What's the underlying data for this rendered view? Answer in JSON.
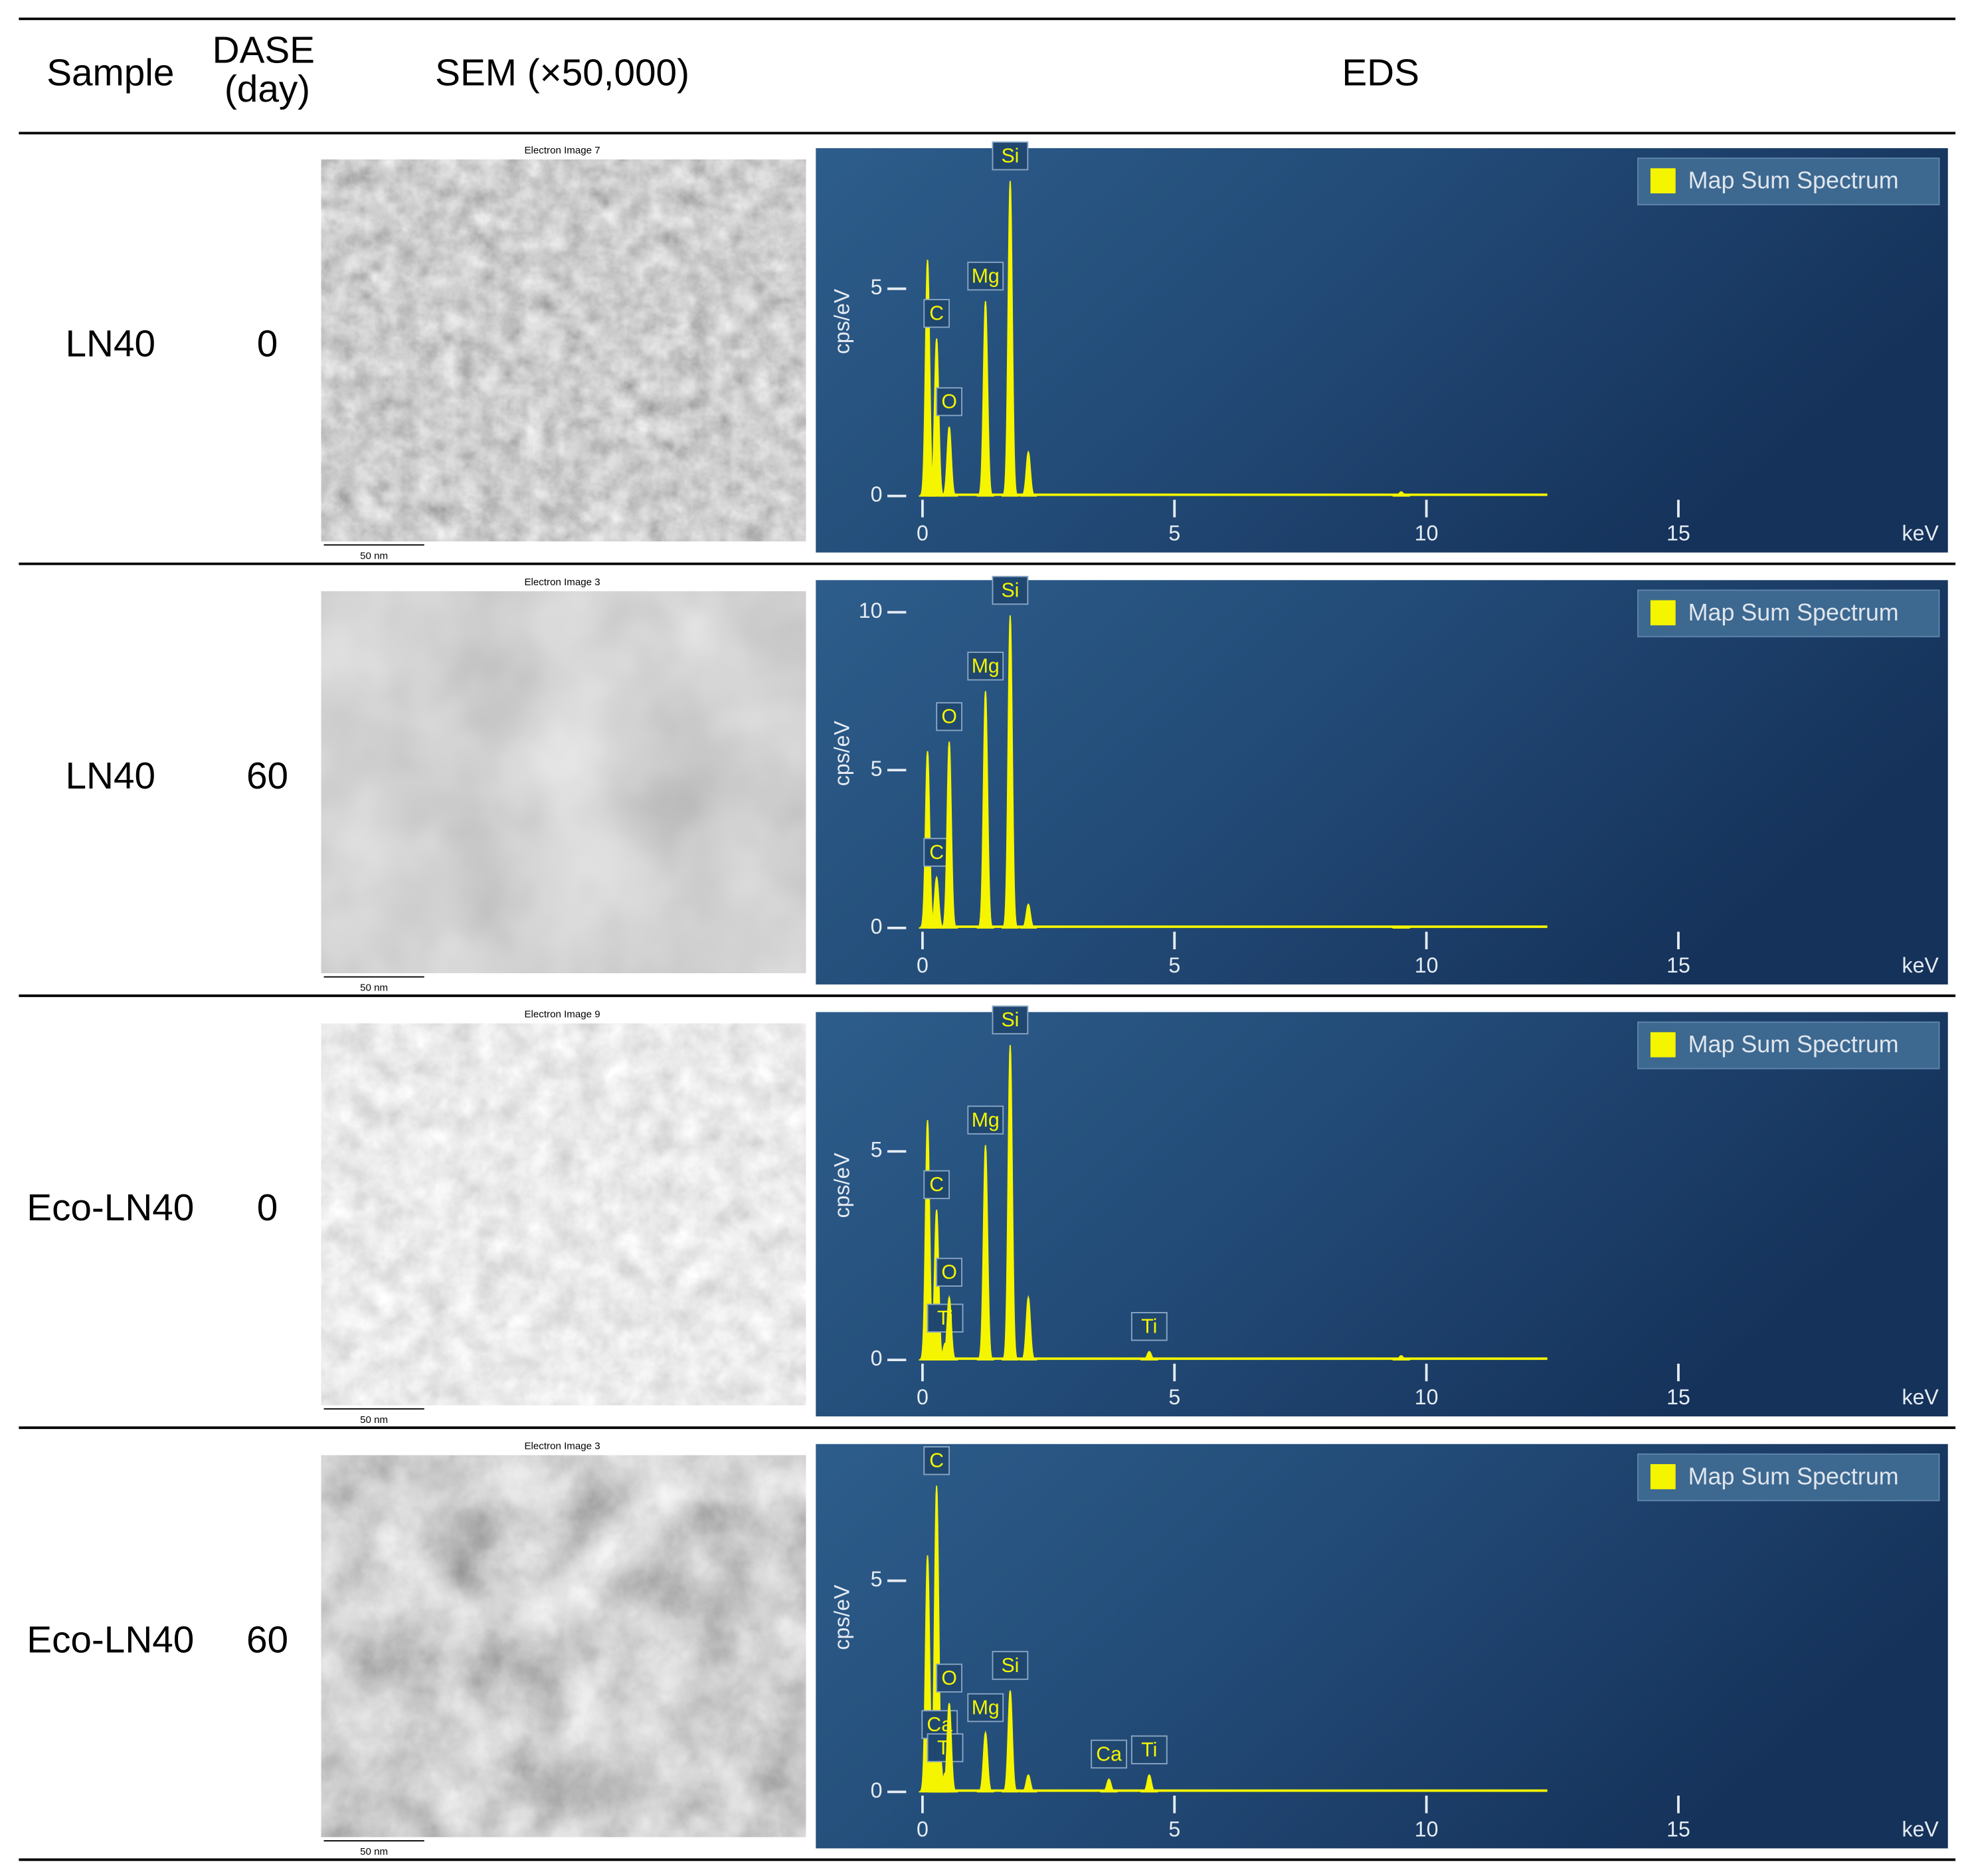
{
  "header": {
    "sample": "Sample",
    "dase": [
      "DASE",
      "(day)"
    ],
    "sem": "SEM (×50,000)",
    "eds": "EDS"
  },
  "rows": [
    {
      "sample": "LN40",
      "dase": 0,
      "sem": {
        "caption": "Electron Image 7",
        "scale": "50 nm"
      },
      "eds": {
        "type": "spectrum",
        "legend": "Map Sum Spectrum",
        "ylabel": "cps/eV",
        "xlabel": "keV",
        "color": "#f5f500",
        "xlim": [
          0,
          20
        ],
        "ylim": [
          0,
          8.15
        ],
        "xticks": [
          0,
          5,
          10,
          15
        ],
        "yticks": [
          0,
          5
        ],
        "peaks": [
          {
            "x": 0.1,
            "y": 5.7
          },
          {
            "x": 0.28,
            "y": 3.8,
            "label": "C"
          },
          {
            "x": 0.53,
            "y": 1.67,
            "label": "O"
          },
          {
            "x": 1.25,
            "y": 4.7,
            "label": "Mg"
          },
          {
            "x": 1.74,
            "y": 7.6,
            "label": "Si"
          },
          {
            "x": 2.1,
            "y": 1.06
          },
          {
            "x": 9.5,
            "y": 0.1
          }
        ]
      }
    },
    {
      "sample": "LN40",
      "dase": 60,
      "sem": {
        "caption": "Electron Image 3",
        "scale": "50 nm"
      },
      "eds": {
        "type": "spectrum",
        "legend": "Map Sum Spectrum",
        "ylabel": "cps/eV",
        "xlabel": "keV",
        "color": "#f5f500",
        "xlim": [
          0,
          20
        ],
        "ylim": [
          0,
          10.7
        ],
        "xticks": [
          0,
          5,
          10,
          15
        ],
        "yticks": [
          0,
          5,
          10
        ],
        "peaks": [
          {
            "x": 0.1,
            "y": 5.6
          },
          {
            "x": 0.28,
            "y": 1.6,
            "label": "C"
          },
          {
            "x": 0.53,
            "y": 5.9,
            "label": "O"
          },
          {
            "x": 1.25,
            "y": 7.5,
            "label": "Mg"
          },
          {
            "x": 1.74,
            "y": 9.9,
            "label": "Si"
          },
          {
            "x": 2.1,
            "y": 0.75
          },
          {
            "x": 9.5,
            "y": 0.05
          }
        ]
      }
    },
    {
      "sample": "Eco-LN40",
      "dase": 0,
      "sem": {
        "caption": "Electron Image 9",
        "scale": "50 nm"
      },
      "eds": {
        "type": "spectrum",
        "legend": "Map Sum Spectrum",
        "ylabel": "cps/eV",
        "xlabel": "keV",
        "color": "#f5f500",
        "xlim": [
          0,
          20
        ],
        "ylim": [
          0,
          8.1
        ],
        "xticks": [
          0,
          5,
          10,
          15
        ],
        "yticks": [
          0,
          5
        ],
        "peaks": [
          {
            "x": 0.1,
            "y": 5.75
          },
          {
            "x": 0.28,
            "y": 3.6,
            "label": "C"
          },
          {
            "x": 0.45,
            "y": 0.4,
            "label": "Ti"
          },
          {
            "x": 0.53,
            "y": 1.5,
            "label": "O"
          },
          {
            "x": 1.25,
            "y": 5.15,
            "label": "Mg"
          },
          {
            "x": 1.74,
            "y": 7.55,
            "label": "Si"
          },
          {
            "x": 2.1,
            "y": 1.5
          },
          {
            "x": 4.5,
            "y": 0.2,
            "label": "Ti"
          },
          {
            "x": 9.5,
            "y": 0.1
          }
        ]
      }
    },
    {
      "sample": "Eco-LN40",
      "dase": 60,
      "sem": {
        "caption": "Electron Image 3",
        "scale": "50 nm"
      },
      "eds": {
        "type": "spectrum",
        "legend": "Map Sum Spectrum",
        "ylabel": "cps/eV",
        "xlabel": "keV",
        "color": "#f5f500",
        "xlim": [
          0,
          20
        ],
        "ylim": [
          0,
          8
        ],
        "xticks": [
          0,
          5,
          10,
          15
        ],
        "yticks": [
          0,
          5
        ],
        "peaks": [
          {
            "x": 0.1,
            "y": 5.6
          },
          {
            "x": 0.28,
            "y": 7.25,
            "label": "C"
          },
          {
            "x": 0.34,
            "y": 1.0,
            "label": "Ca"
          },
          {
            "x": 0.45,
            "y": 0.45,
            "label": "Ti"
          },
          {
            "x": 0.53,
            "y": 2.1,
            "label": "O"
          },
          {
            "x": 1.25,
            "y": 1.4,
            "label": "Mg"
          },
          {
            "x": 1.74,
            "y": 2.4,
            "label": "Si"
          },
          {
            "x": 2.1,
            "y": 0.4
          },
          {
            "x": 3.7,
            "y": 0.3,
            "label": "Ca"
          },
          {
            "x": 4.5,
            "y": 0.4,
            "label": "Ti"
          }
        ]
      }
    }
  ]
}
